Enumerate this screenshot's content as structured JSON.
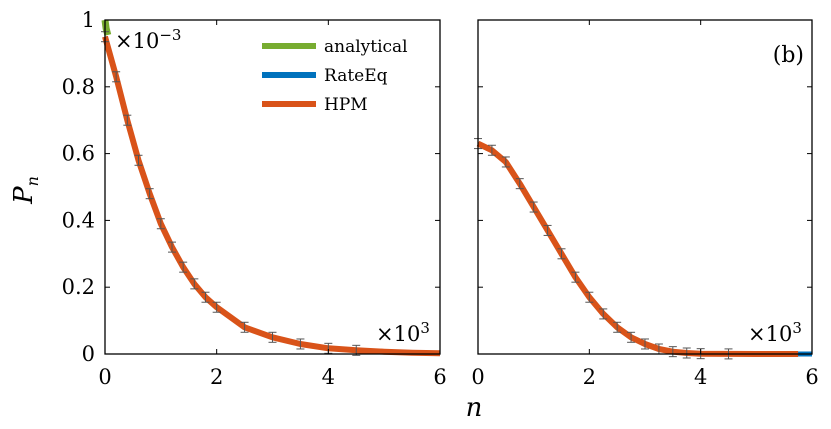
{
  "figure": {
    "ylabel": {
      "base": "P",
      "sub": "n"
    },
    "xlabel": "n"
  },
  "chart_data": [
    {
      "type": "line",
      "panel": "left",
      "panel_label": "",
      "xlim": [
        0,
        6
      ],
      "ylim": [
        0,
        1
      ],
      "x_ticks": [
        "0",
        "2",
        "4",
        "6"
      ],
      "y_ticks": [
        "0",
        "0.2",
        "0.4",
        "0.6",
        "0.8",
        "1"
      ],
      "x_multiplier": {
        "base": "×10",
        "exp": "3"
      },
      "y_multiplier": {
        "base": "×10",
        "exp": "−3"
      },
      "legend": {
        "position": "top-right",
        "entries": [
          "analytical",
          "RateEq",
          "HPM"
        ]
      },
      "series": [
        {
          "name": "analytical",
          "color": "#77ac30",
          "x": [
            0,
            0.02,
            0.05
          ],
          "y": [
            1.0,
            0.975,
            0.955
          ]
        },
        {
          "name": "RateEq",
          "color": "#0072bd",
          "x": [
            0,
            0.2,
            0.4,
            0.6,
            0.8,
            1.0,
            1.2,
            1.4,
            1.6,
            1.8,
            2.0,
            2.5,
            3.0,
            3.5,
            4.0,
            4.5,
            5.0,
            5.5,
            6.0
          ],
          "y": [
            0.95,
            0.83,
            0.7,
            0.58,
            0.48,
            0.39,
            0.32,
            0.26,
            0.21,
            0.17,
            0.14,
            0.08,
            0.05,
            0.03,
            0.017,
            0.011,
            0.007,
            0.004,
            0.002
          ]
        },
        {
          "name": "HPM",
          "color": "#d95319",
          "x": [
            0,
            0.2,
            0.4,
            0.6,
            0.8,
            1.0,
            1.2,
            1.4,
            1.6,
            1.8,
            2.0,
            2.5,
            3.0,
            3.5,
            4.0,
            4.5,
            5.0,
            5.5,
            6.0
          ],
          "y": [
            0.95,
            0.83,
            0.7,
            0.58,
            0.48,
            0.39,
            0.32,
            0.26,
            0.21,
            0.17,
            0.14,
            0.08,
            0.05,
            0.03,
            0.017,
            0.011,
            0.007,
            0.004,
            0.002
          ]
        }
      ]
    },
    {
      "type": "line",
      "panel": "right",
      "panel_label": "(b)",
      "xlim": [
        0,
        6
      ],
      "ylim": [
        0,
        1
      ],
      "x_ticks": [
        "0",
        "2",
        "4",
        "6"
      ],
      "y_ticks": [],
      "x_multiplier": {
        "base": "×10",
        "exp": "3"
      },
      "series": [
        {
          "name": "RateEq",
          "color": "#0072bd",
          "x": [
            0,
            0.25,
            0.5,
            0.75,
            1.0,
            1.25,
            1.5,
            1.75,
            2.0,
            2.25,
            2.5,
            2.75,
            3.0,
            3.25,
            3.5,
            3.75,
            4.0,
            4.5,
            5.0,
            5.5,
            6.0
          ],
          "y": [
            0.63,
            0.61,
            0.575,
            0.51,
            0.44,
            0.37,
            0.3,
            0.23,
            0.17,
            0.12,
            0.08,
            0.05,
            0.03,
            0.015,
            0.007,
            0.003,
            0.001,
            0.0003,
            0.0001,
            0.0,
            0.0
          ]
        },
        {
          "name": "HPM",
          "color": "#d95319",
          "x": [
            0,
            0.25,
            0.5,
            0.75,
            1.0,
            1.25,
            1.5,
            1.75,
            2.0,
            2.25,
            2.5,
            2.75,
            3.0,
            3.25,
            3.5,
            3.75,
            4.0,
            4.5,
            5.0,
            5.5,
            5.75
          ],
          "y": [
            0.63,
            0.61,
            0.575,
            0.51,
            0.44,
            0.37,
            0.3,
            0.23,
            0.17,
            0.12,
            0.08,
            0.05,
            0.03,
            0.015,
            0.007,
            0.003,
            0.001,
            0.0003,
            0.0001,
            0.0,
            0.0
          ]
        }
      ]
    }
  ]
}
